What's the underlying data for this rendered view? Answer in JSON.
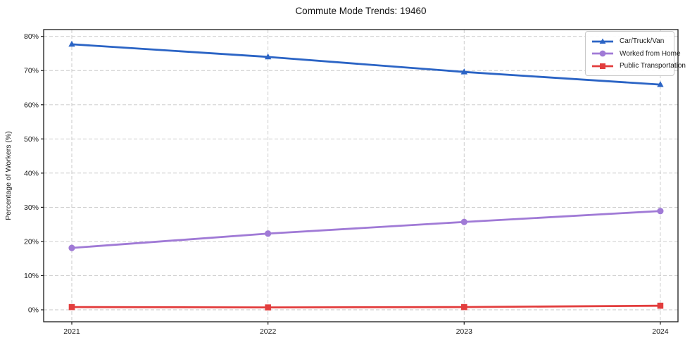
{
  "title": "Commute Mode Trends: 19460",
  "chart_data": {
    "type": "line",
    "title": "Commute Mode Trends: 19460",
    "xlabel": "",
    "ylabel": "Percentage of Workers (%)",
    "x": [
      2021,
      2022,
      2023,
      2024
    ],
    "xticklabels": [
      "2021",
      "2022",
      "2023",
      "2024"
    ],
    "series": [
      {
        "name": "Car/Truck/Van",
        "color": "#2b64c5",
        "marker": "triangle",
        "values": [
          77.7,
          74.0,
          69.6,
          65.9
        ]
      },
      {
        "name": "Worked from Home",
        "color": "#a07ad6",
        "marker": "circle",
        "values": [
          18.1,
          22.3,
          25.7,
          28.9
        ]
      },
      {
        "name": "Public Transportation",
        "color": "#e23d3d",
        "marker": "square",
        "values": [
          0.8,
          0.7,
          0.8,
          1.2
        ]
      }
    ],
    "ylim": [
      -3.5,
      82
    ],
    "yticks": [
      0,
      10,
      20,
      30,
      40,
      50,
      60,
      70,
      80
    ],
    "ytick_format": "percent",
    "grid": "dashed",
    "grid_color": "#c7c7c7",
    "spine_color": "#1a1a1a",
    "legend_position": "upper right"
  }
}
